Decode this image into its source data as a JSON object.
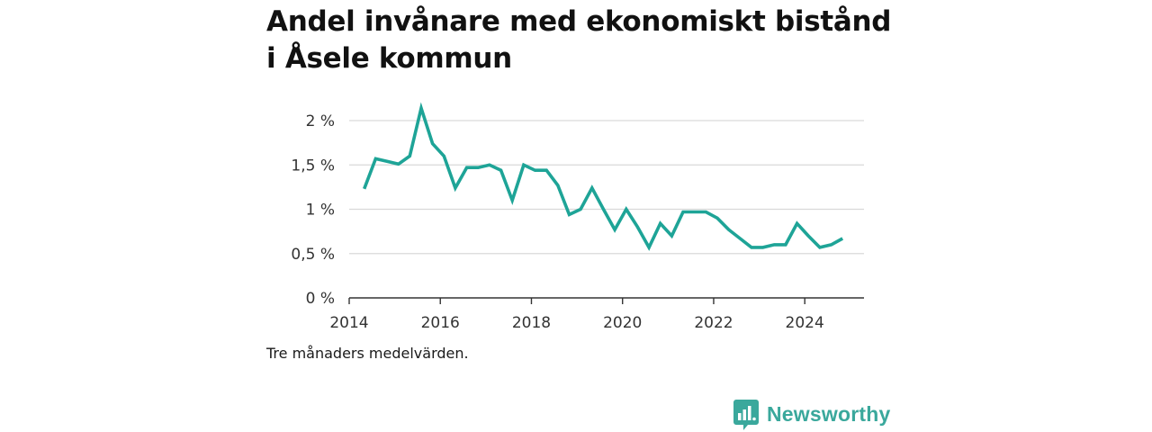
{
  "chart_data": {
    "type": "line",
    "title": "Andel invånare med ekonomiskt bistånd i Åsele kommun",
    "note": "Tre månaders medelvärden.",
    "xlabel": "",
    "ylabel": "",
    "y_unit": "%",
    "xlim": [
      2014.0,
      2025.3
    ],
    "ylim": [
      0,
      2
    ],
    "x_ticks": [
      2014,
      2016,
      2018,
      2020,
      2022,
      2024
    ],
    "y_ticks": [
      0,
      0.5,
      1,
      1.5,
      2
    ],
    "y_tick_labels": [
      "0 %",
      "0,5 %",
      "1 %",
      "1,5 %",
      "2 %"
    ],
    "grid": "horizontal",
    "line_color": "#1ea497",
    "series": [
      {
        "x": [
          2014.33,
          2014.58,
          2014.83,
          2015.08,
          2015.33,
          2015.58,
          2015.83,
          2016.08,
          2016.33,
          2016.58,
          2016.83,
          2017.08,
          2017.33,
          2017.58,
          2017.83,
          2018.08,
          2018.33,
          2018.58,
          2018.83,
          2019.08,
          2019.33,
          2019.58,
          2019.83,
          2020.08,
          2020.33,
          2020.58,
          2020.83,
          2021.08,
          2021.33,
          2021.58,
          2021.83,
          2022.08,
          2022.33,
          2022.58,
          2022.83,
          2023.08,
          2023.33,
          2023.58,
          2023.83,
          2024.08,
          2024.33,
          2024.58,
          2024.83
        ],
        "values": [
          1.23,
          1.57,
          1.54,
          1.51,
          1.6,
          2.14,
          1.74,
          1.6,
          1.24,
          1.47,
          1.47,
          1.5,
          1.44,
          1.1,
          1.5,
          1.44,
          1.44,
          1.27,
          0.94,
          1.0,
          1.24,
          1.0,
          0.77,
          1.0,
          0.8,
          0.57,
          0.84,
          0.7,
          0.97,
          0.97,
          0.97,
          0.9,
          0.77,
          0.67,
          0.57,
          0.57,
          0.6,
          0.6,
          0.84,
          0.7,
          0.57,
          0.6,
          0.67
        ]
      }
    ]
  },
  "brand": {
    "name": "Newsworthy",
    "color": "#3aa89c",
    "icon": "newsworthy-logo-icon"
  }
}
